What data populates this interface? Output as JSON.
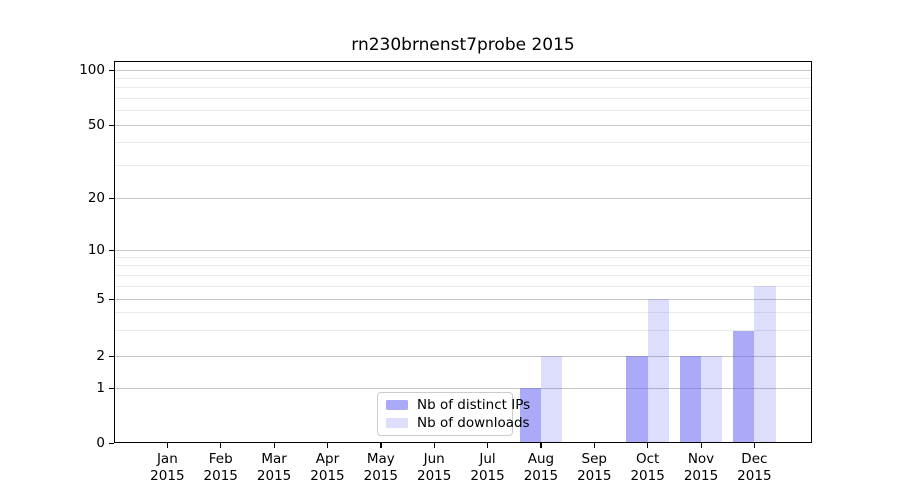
{
  "chart_data": {
    "type": "bar",
    "title": "rn230brnenst7probe 2015",
    "categories": [
      "Jan 2015",
      "Feb 2015",
      "Mar 2015",
      "Apr 2015",
      "May 2015",
      "Jun 2015",
      "Jul 2015",
      "Aug 2015",
      "Sep 2015",
      "Oct 2015",
      "Nov 2015",
      "Dec 2015"
    ],
    "series": [
      {
        "name": "Nb of distinct IPs",
        "color": "rgba(95,95,242,0.53)",
        "color_hex": "#aaaaf8",
        "values": [
          0,
          0,
          0,
          0,
          0,
          0,
          0,
          1,
          0,
          2,
          2,
          3
        ]
      },
      {
        "name": "Nb of downloads",
        "color": "rgba(95,95,242,0.21)",
        "color_hex": "#dddcfc",
        "values": [
          0,
          0,
          0,
          0,
          0,
          0,
          0,
          2,
          0,
          5,
          2,
          6
        ]
      }
    ],
    "xlabel": "",
    "ylabel": "",
    "yscale": "symlog",
    "ylim": [
      0,
      100
    ],
    "y_major_ticks": [
      0,
      1,
      2,
      5,
      10,
      20,
      50,
      100
    ],
    "y_minor_ticks": [
      3,
      4,
      6,
      7,
      8,
      9,
      30,
      40,
      60,
      70,
      80,
      90
    ],
    "grid": true,
    "legend_position": "lower center inside"
  },
  "colors": {
    "background": "#ffffff",
    "axis": "#000000",
    "grid_major": "#c6c6c6",
    "grid_minor": "#eaeaea",
    "bar_dark": "#aaaaf8",
    "bar_light": "#dddcfc"
  }
}
